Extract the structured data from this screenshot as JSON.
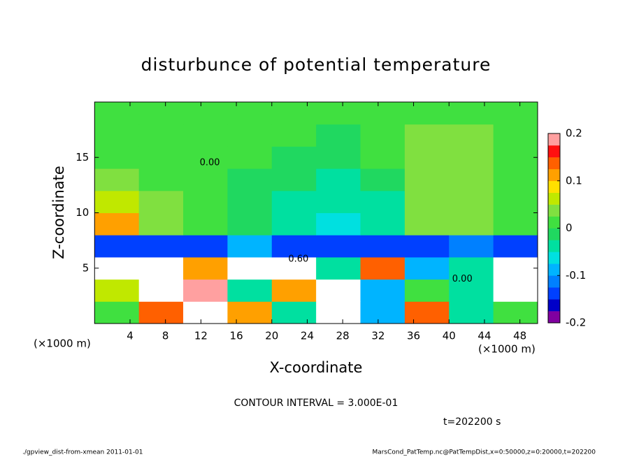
{
  "chart_data": {
    "type": "heatmap",
    "title": "disturbunce of potential temperature",
    "x_label": "X-coordinate",
    "y_label": "Z-coordinate",
    "x_unit": "(×1000 m)",
    "x_unit_right": "(×1000 m)",
    "contour_interval": "CONTOUR INTERVAL = 3.000E-01",
    "time_label": "t=202200 s",
    "footer_left": "./gpview_dist-from-xmean  2011-01-01",
    "footer_right": "MarsCond_PatTemp.nc@PatTempDist,x=0:50000,z=0:20000,t=202200",
    "annotations": [
      {
        "text": "0.00",
        "x": 13,
        "z": 14.5
      },
      {
        "text": "0.60",
        "x": 23,
        "z": 5.8
      },
      {
        "text": "0.00",
        "x": 41.5,
        "z": 4
      }
    ],
    "xlim": [
      0,
      50
    ],
    "ylim": [
      0,
      20
    ],
    "xticks": [
      4,
      8,
      12,
      16,
      20,
      24,
      28,
      32,
      36,
      40,
      44,
      48
    ],
    "yticks": [
      5,
      10,
      15
    ],
    "x": [
      2.5,
      7.5,
      12.5,
      17.5,
      22.5,
      27.5,
      32.5,
      37.5,
      42.5,
      47.5
    ],
    "z": [
      1,
      3,
      5,
      7,
      9,
      11,
      13,
      15,
      17,
      19
    ],
    "values": [
      [
        0.0,
        0.15,
        0.25,
        0.1,
        -0.05,
        0.25,
        -0.1,
        0.15,
        -0.05,
        0.0
      ],
      [
        0.05,
        0.25,
        0.2,
        -0.05,
        0.1,
        0.25,
        -0.1,
        0.0,
        -0.05,
        0.25
      ],
      [
        0.25,
        0.25,
        0.1,
        0.25,
        0.25,
        -0.05,
        0.15,
        -0.1,
        -0.05,
        0.25
      ],
      [
        -0.15,
        -0.15,
        -0.15,
        -0.1,
        -0.15,
        -0.15,
        -0.15,
        -0.15,
        -0.12,
        -0.15
      ],
      [
        0.12,
        0.04,
        0.0,
        -0.02,
        -0.05,
        -0.07,
        -0.05,
        0.03,
        0.03,
        0.0
      ],
      [
        0.06,
        0.03,
        0.0,
        -0.02,
        -0.04,
        -0.05,
        -0.03,
        0.04,
        0.04,
        0.0
      ],
      [
        0.03,
        0.02,
        0.0,
        -0.01,
        -0.02,
        -0.03,
        -0.01,
        0.04,
        0.03,
        0.0
      ],
      [
        0.02,
        0.02,
        0.01,
        0.0,
        -0.01,
        -0.02,
        0.0,
        0.04,
        0.03,
        0.01
      ],
      [
        0.0,
        0.0,
        0.0,
        0.01,
        0.0,
        -0.01,
        0.0,
        0.03,
        0.03,
        0.01
      ],
      [
        0.0,
        0.0,
        0.0,
        0.0,
        0.0,
        0.0,
        0.0,
        0.01,
        0.02,
        0.0
      ]
    ],
    "clim": [
      -0.2,
      0.2
    ],
    "cticks": [
      -0.2,
      -0.1,
      0,
      0.1,
      0.2
    ],
    "colors": [
      "#8000a0",
      "#0000c8",
      "#0040ff",
      "#0080ff",
      "#00b4ff",
      "#00e0e0",
      "#00e0a0",
      "#20d860",
      "#40e040",
      "#80e040",
      "#c0e800",
      "#ffe000",
      "#ffa000",
      "#ff6000",
      "#ff1010",
      "#ffa0a0"
    ],
    "out_of_range_color": "#ffffff"
  }
}
